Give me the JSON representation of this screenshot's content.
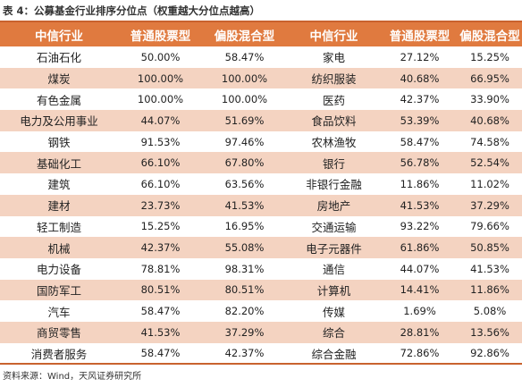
{
  "caption": "表 4：公募基金行业排序分位点（权重越大分位点越高）",
  "headers": [
    "中信行业",
    "普通股票型",
    "偏股混合型",
    "中信行业",
    "普通股票型",
    "偏股混合型"
  ],
  "rows": [
    [
      "石油石化",
      "50.00%",
      "58.47%",
      "家电",
      "27.12%",
      "15.25%"
    ],
    [
      "煤炭",
      "100.00%",
      "100.00%",
      "纺织服装",
      "40.68%",
      "66.95%"
    ],
    [
      "有色金属",
      "100.00%",
      "100.00%",
      "医药",
      "42.37%",
      "33.90%"
    ],
    [
      "电力及公用事业",
      "44.07%",
      "51.69%",
      "食品饮料",
      "53.39%",
      "40.68%"
    ],
    [
      "钢铁",
      "91.53%",
      "97.46%",
      "农林渔牧",
      "58.47%",
      "74.58%"
    ],
    [
      "基础化工",
      "66.10%",
      "67.80%",
      "银行",
      "56.78%",
      "52.54%"
    ],
    [
      "建筑",
      "66.10%",
      "63.56%",
      "非银行金融",
      "11.86%",
      "11.02%"
    ],
    [
      "建材",
      "23.73%",
      "41.53%",
      "房地产",
      "41.53%",
      "37.29%"
    ],
    [
      "轻工制造",
      "15.25%",
      "16.95%",
      "交通运输",
      "93.22%",
      "79.66%"
    ],
    [
      "机械",
      "42.37%",
      "55.08%",
      "电子元器件",
      "61.86%",
      "50.85%"
    ],
    [
      "电力设备",
      "78.81%",
      "98.31%",
      "通信",
      "44.07%",
      "41.53%"
    ],
    [
      "国防军工",
      "80.51%",
      "80.51%",
      "计算机",
      "14.41%",
      "11.86%"
    ],
    [
      "汽车",
      "58.47%",
      "82.20%",
      "传媒",
      "1.69%",
      "5.08%"
    ],
    [
      "商贸零售",
      "41.53%",
      "37.29%",
      "综合",
      "28.81%",
      "13.56%"
    ],
    [
      "消费者服务",
      "58.47%",
      "42.37%",
      "综合金融",
      "72.86%",
      "92.86%"
    ]
  ],
  "source": "资料来源：Wind，天风证券研究所",
  "colors": {
    "accent": "#e07a3f",
    "stripe": "#f4d3c1",
    "rule": "#c9622e"
  }
}
